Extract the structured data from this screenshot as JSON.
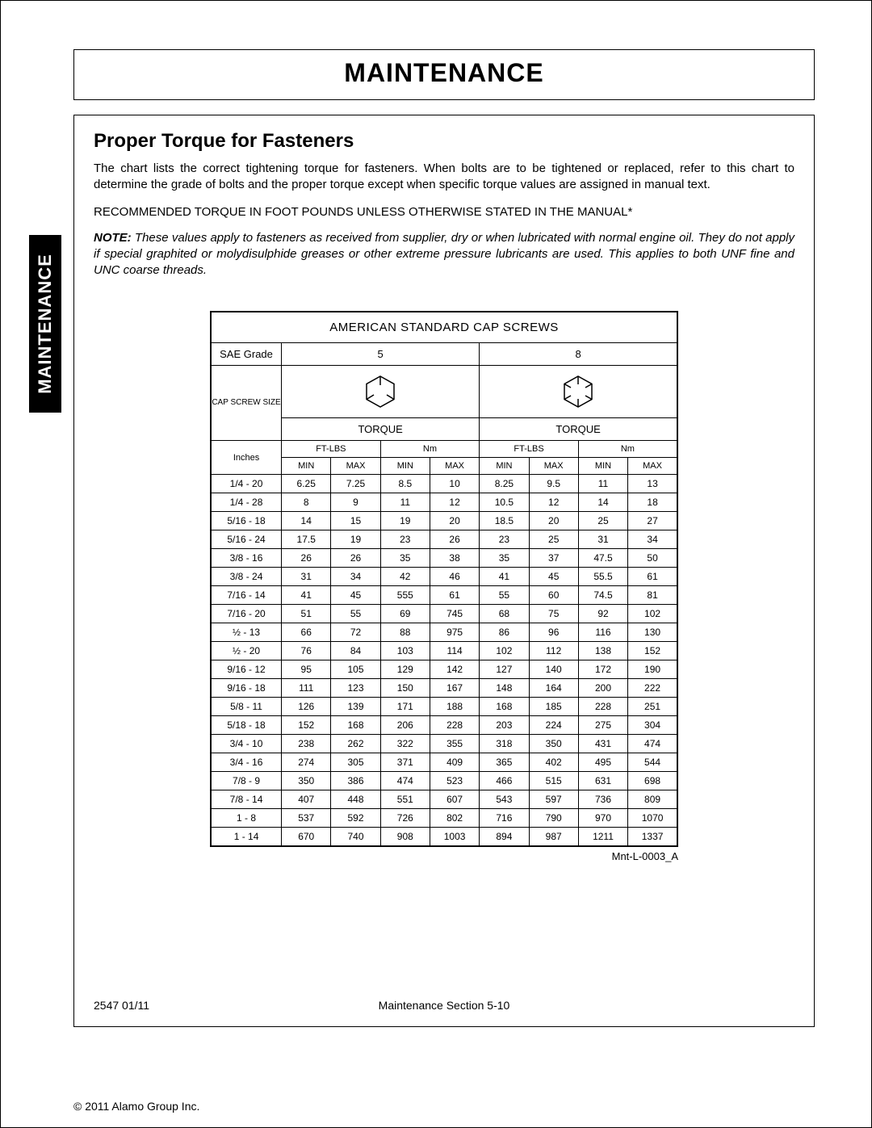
{
  "title": "MAINTENANCE",
  "side_tab": "MAINTENANCE",
  "section_title": "Proper Torque for Fasteners",
  "intro": "The chart lists the correct tightening torque for fasteners. When bolts are to be tightened or replaced, refer to this chart to determine the grade of bolts and the proper torque except when specific torque values are assigned in manual text.",
  "recommended": "RECOMMENDED TORQUE IN FOOT POUNDS UNLESS OTHERWISE STATED IN THE MANUAL*",
  "note_bold": "NOTE:",
  "note": "These values apply to fasteners as received from supplier, dry or when lubricated with normal engine oil. They do not apply if special graphited or molydisulphide greases or other extreme pressure lubricants are used. This applies to both UNF fine and UNC coarse threads.",
  "table": {
    "main_head": "AMERICAN STANDARD CAP SCREWS",
    "sae_label": "SAE Grade",
    "grades": [
      "5",
      "8"
    ],
    "cap_screw_label": "CAP SCREW SIZE",
    "torque_label": "TORQUE",
    "units": [
      "FT-LBS",
      "Nm",
      "FT-LBS",
      "Nm"
    ],
    "minmax": [
      "MIN",
      "MAX"
    ],
    "size_header": "Inches",
    "rows": [
      {
        "size": "1/4 - 20",
        "v": [
          "6.25",
          "7.25",
          "8.5",
          "10",
          "8.25",
          "9.5",
          "11",
          "13"
        ]
      },
      {
        "size": "1/4 - 28",
        "v": [
          "8",
          "9",
          "11",
          "12",
          "10.5",
          "12",
          "14",
          "18"
        ]
      },
      {
        "size": "5/16 - 18",
        "v": [
          "14",
          "15",
          "19",
          "20",
          "18.5",
          "20",
          "25",
          "27"
        ]
      },
      {
        "size": "5/16 - 24",
        "v": [
          "17.5",
          "19",
          "23",
          "26",
          "23",
          "25",
          "31",
          "34"
        ]
      },
      {
        "size": "3/8 - 16",
        "v": [
          "26",
          "26",
          "35",
          "38",
          "35",
          "37",
          "47.5",
          "50"
        ]
      },
      {
        "size": "3/8 - 24",
        "v": [
          "31",
          "34",
          "42",
          "46",
          "41",
          "45",
          "55.5",
          "61"
        ]
      },
      {
        "size": "7/16 - 14",
        "v": [
          "41",
          "45",
          "555",
          "61",
          "55",
          "60",
          "74.5",
          "81"
        ]
      },
      {
        "size": "7/16 - 20",
        "v": [
          "51",
          "55",
          "69",
          "745",
          "68",
          "75",
          "92",
          "102"
        ]
      },
      {
        "size": "½ - 13",
        "v": [
          "66",
          "72",
          "88",
          "975",
          "86",
          "96",
          "116",
          "130"
        ]
      },
      {
        "size": "½ - 20",
        "v": [
          "76",
          "84",
          "103",
          "114",
          "102",
          "112",
          "138",
          "152"
        ]
      },
      {
        "size": "9/16 - 12",
        "v": [
          "95",
          "105",
          "129",
          "142",
          "127",
          "140",
          "172",
          "190"
        ]
      },
      {
        "size": "9/16 - 18",
        "v": [
          "111",
          "123",
          "150",
          "167",
          "148",
          "164",
          "200",
          "222"
        ]
      },
      {
        "size": "5/8 - 11",
        "v": [
          "126",
          "139",
          "171",
          "188",
          "168",
          "185",
          "228",
          "251"
        ]
      },
      {
        "size": "5/18 - 18",
        "v": [
          "152",
          "168",
          "206",
          "228",
          "203",
          "224",
          "275",
          "304"
        ]
      },
      {
        "size": "3/4 - 10",
        "v": [
          "238",
          "262",
          "322",
          "355",
          "318",
          "350",
          "431",
          "474"
        ]
      },
      {
        "size": "3/4 - 16",
        "v": [
          "274",
          "305",
          "371",
          "409",
          "365",
          "402",
          "495",
          "544"
        ]
      },
      {
        "size": "7/8 - 9",
        "v": [
          "350",
          "386",
          "474",
          "523",
          "466",
          "515",
          "631",
          "698"
        ]
      },
      {
        "size": "7/8 - 14",
        "v": [
          "407",
          "448",
          "551",
          "607",
          "543",
          "597",
          "736",
          "809"
        ]
      },
      {
        "size": "1 - 8",
        "v": [
          "537",
          "592",
          "726",
          "802",
          "716",
          "790",
          "970",
          "1070"
        ]
      },
      {
        "size": "1 - 14",
        "v": [
          "670",
          "740",
          "908",
          "1003",
          "894",
          "987",
          "1211",
          "1337"
        ]
      }
    ],
    "ref": "Mnt-L-0003_A"
  },
  "footer": {
    "left": "2547   01/11",
    "center": "Maintenance Section 5-10"
  },
  "copyright": "© 2011 Alamo Group Inc."
}
